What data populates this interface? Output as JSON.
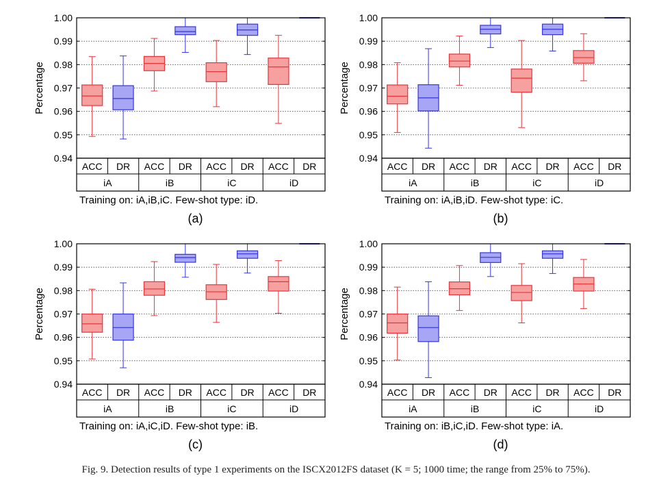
{
  "figure": {
    "caption": "Fig. 9.   Detection results of type 1 experiments on the ISCX2012FS dataset (K = 5; 1000 time; the range from 25% to 75%)."
  },
  "colors": {
    "acc": "#e8333a",
    "acc_fill": "#f6a0a0",
    "dr": "#3434e0",
    "dr_fill": "#a6a6f4"
  },
  "chart_data": [
    {
      "type": "box",
      "panel_label": "(a)",
      "subtitle": "Training on: iA,iB,iC.  Few-shot type: iD.",
      "ylabel": "Percentage",
      "ylim": [
        0.94,
        1.0
      ],
      "yticks": [
        "0.94",
        "0.95",
        "0.96",
        "0.97",
        "0.98",
        "0.99",
        "1.00"
      ],
      "groups": [
        "iA",
        "iB",
        "iC",
        "iD"
      ],
      "series": [
        "ACC",
        "DR"
      ],
      "boxes": [
        {
          "group": "iA",
          "series": "ACC",
          "min": 0.9493,
          "q1": 0.9625,
          "median": 0.9666,
          "q3": 0.9713,
          "max": 0.9834
        },
        {
          "group": "iA",
          "series": "DR",
          "min": 0.9482,
          "q1": 0.9607,
          "median": 0.9655,
          "q3": 0.971,
          "max": 0.9837
        },
        {
          "group": "iB",
          "series": "ACC",
          "min": 0.9687,
          "q1": 0.9774,
          "median": 0.9805,
          "q3": 0.9835,
          "max": 0.9912
        },
        {
          "group": "iB",
          "series": "DR",
          "min": 0.9852,
          "q1": 0.9928,
          "median": 0.9941,
          "q3": 0.9962,
          "max": 1.0
        },
        {
          "group": "iC",
          "series": "ACC",
          "min": 0.962,
          "q1": 0.9727,
          "median": 0.977,
          "q3": 0.9808,
          "max": 0.9903
        },
        {
          "group": "iC",
          "series": "DR",
          "min": 0.9843,
          "q1": 0.9925,
          "median": 0.9948,
          "q3": 0.9973,
          "max": 1.0
        },
        {
          "group": "iD",
          "series": "ACC",
          "min": 0.9549,
          "q1": 0.9715,
          "median": 0.979,
          "q3": 0.9828,
          "max": 0.9925
        },
        {
          "group": "iD",
          "series": "DR",
          "min": 1.0,
          "q1": 1.0,
          "median": 1.0,
          "q3": 1.0,
          "max": 1.0
        }
      ]
    },
    {
      "type": "box",
      "panel_label": "(b)",
      "subtitle": "Training on: iA,iB,iD.  Few-shot type: iC.",
      "ylabel": "Percentage",
      "ylim": [
        0.94,
        1.0
      ],
      "yticks": [
        "0.94",
        "0.95",
        "0.96",
        "0.97",
        "0.98",
        "0.99",
        "1.00"
      ],
      "groups": [
        "iA",
        "iB",
        "iC",
        "iD"
      ],
      "series": [
        "ACC",
        "DR"
      ],
      "boxes": [
        {
          "group": "iA",
          "series": "ACC",
          "min": 0.951,
          "q1": 0.9632,
          "median": 0.9665,
          "q3": 0.9713,
          "max": 0.9808
        },
        {
          "group": "iA",
          "series": "DR",
          "min": 0.9443,
          "q1": 0.9602,
          "median": 0.9658,
          "q3": 0.9714,
          "max": 0.9868
        },
        {
          "group": "iB",
          "series": "ACC",
          "min": 0.9712,
          "q1": 0.979,
          "median": 0.9815,
          "q3": 0.9845,
          "max": 0.9922
        },
        {
          "group": "iB",
          "series": "DR",
          "min": 0.9873,
          "q1": 0.9931,
          "median": 0.9951,
          "q3": 0.9968,
          "max": 1.0
        },
        {
          "group": "iC",
          "series": "ACC",
          "min": 0.9531,
          "q1": 0.9682,
          "median": 0.9742,
          "q3": 0.9781,
          "max": 0.9903
        },
        {
          "group": "iC",
          "series": "DR",
          "min": 0.9858,
          "q1": 0.9928,
          "median": 0.9951,
          "q3": 0.9973,
          "max": 1.0
        },
        {
          "group": "iD",
          "series": "ACC",
          "min": 0.9731,
          "q1": 0.9806,
          "median": 0.983,
          "q3": 0.986,
          "max": 0.9932
        },
        {
          "group": "iD",
          "series": "DR",
          "min": 1.0,
          "q1": 1.0,
          "median": 1.0,
          "q3": 1.0,
          "max": 1.0
        }
      ]
    },
    {
      "type": "box",
      "panel_label": "(c)",
      "subtitle": "Training on: iA,iC,iD.  Few-shot type: iB.",
      "ylabel": "Percentage",
      "ylim": [
        0.94,
        1.0
      ],
      "yticks": [
        "0.94",
        "0.95",
        "0.96",
        "0.97",
        "0.98",
        "0.99",
        "1.00"
      ],
      "groups": [
        "iA",
        "iB",
        "iC",
        "iD"
      ],
      "series": [
        "ACC",
        "DR"
      ],
      "boxes": [
        {
          "group": "iA",
          "series": "ACC",
          "min": 0.9508,
          "q1": 0.9622,
          "median": 0.9658,
          "q3": 0.97,
          "max": 0.9806
        },
        {
          "group": "iA",
          "series": "DR",
          "min": 0.947,
          "q1": 0.9588,
          "median": 0.9642,
          "q3": 0.97,
          "max": 0.9833
        },
        {
          "group": "iB",
          "series": "ACC",
          "min": 0.9693,
          "q1": 0.978,
          "median": 0.9807,
          "q3": 0.9838,
          "max": 0.9924
        },
        {
          "group": "iB",
          "series": "DR",
          "min": 0.9857,
          "q1": 0.9921,
          "median": 0.9941,
          "q3": 0.9955,
          "max": 1.0
        },
        {
          "group": "iC",
          "series": "ACC",
          "min": 0.9664,
          "q1": 0.9762,
          "median": 0.9795,
          "q3": 0.9825,
          "max": 0.9912
        },
        {
          "group": "iC",
          "series": "DR",
          "min": 0.9875,
          "q1": 0.9938,
          "median": 0.9957,
          "q3": 0.997,
          "max": 1.0
        },
        {
          "group": "iD",
          "series": "ACC",
          "min": 0.9703,
          "q1": 0.9798,
          "median": 0.9838,
          "q3": 0.986,
          "max": 0.9928
        },
        {
          "group": "iD",
          "series": "DR",
          "min": 1.0,
          "q1": 1.0,
          "median": 1.0,
          "q3": 1.0,
          "max": 1.0
        }
      ]
    },
    {
      "type": "box",
      "panel_label": "(d)",
      "subtitle": "Training on: iB,iC,iD.  Few-shot type: iA.",
      "ylabel": "Percentage",
      "ylim": [
        0.94,
        1.0
      ],
      "yticks": [
        "0.94",
        "0.95",
        "0.96",
        "0.97",
        "0.98",
        "0.99",
        "1.00"
      ],
      "groups": [
        "iA",
        "iB",
        "iC",
        "iD"
      ],
      "series": [
        "ACC",
        "DR"
      ],
      "boxes": [
        {
          "group": "iA",
          "series": "ACC",
          "min": 0.9503,
          "q1": 0.9618,
          "median": 0.9662,
          "q3": 0.97,
          "max": 0.9815
        },
        {
          "group": "iA",
          "series": "DR",
          "min": 0.9428,
          "q1": 0.9582,
          "median": 0.9642,
          "q3": 0.9692,
          "max": 0.9838
        },
        {
          "group": "iB",
          "series": "ACC",
          "min": 0.9715,
          "q1": 0.9782,
          "median": 0.9808,
          "q3": 0.9837,
          "max": 0.9907
        },
        {
          "group": "iB",
          "series": "DR",
          "min": 0.986,
          "q1": 0.992,
          "median": 0.9942,
          "q3": 0.9962,
          "max": 1.0
        },
        {
          "group": "iC",
          "series": "ACC",
          "min": 0.9662,
          "q1": 0.9757,
          "median": 0.9792,
          "q3": 0.9822,
          "max": 0.9915
        },
        {
          "group": "iC",
          "series": "DR",
          "min": 0.9873,
          "q1": 0.9938,
          "median": 0.9957,
          "q3": 0.997,
          "max": 1.0
        },
        {
          "group": "iD",
          "series": "ACC",
          "min": 0.9723,
          "q1": 0.9798,
          "median": 0.9828,
          "q3": 0.9856,
          "max": 0.9933
        },
        {
          "group": "iD",
          "series": "DR",
          "min": 1.0,
          "q1": 1.0,
          "median": 1.0,
          "q3": 1.0,
          "max": 1.0
        }
      ]
    }
  ]
}
